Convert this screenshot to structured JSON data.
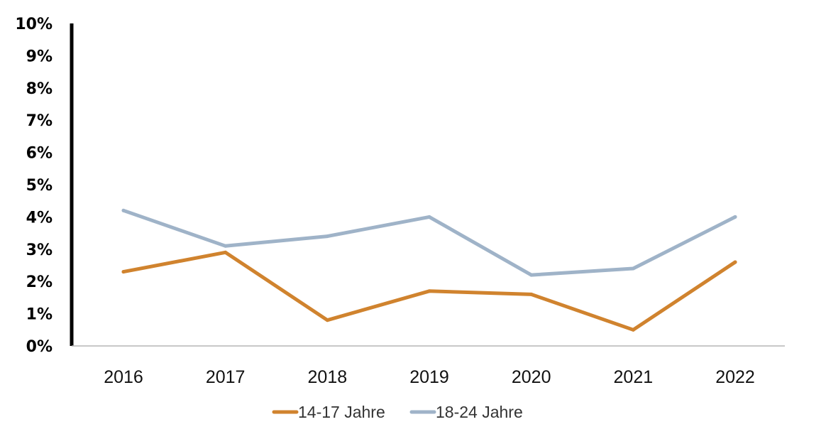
{
  "chart_data": {
    "type": "line",
    "title": "",
    "xlabel": "",
    "ylabel": "",
    "categories": [
      "2016",
      "2017",
      "2018",
      "2019",
      "2020",
      "2021",
      "2022"
    ],
    "ylim": [
      0,
      10
    ],
    "yticks": [
      0,
      1,
      2,
      3,
      4,
      5,
      6,
      7,
      8,
      9,
      10
    ],
    "ytick_labels": [
      "0%",
      "1%",
      "2%",
      "3%",
      "4%",
      "5%",
      "6%",
      "7%",
      "8%",
      "9%",
      "10%"
    ],
    "grid": false,
    "legend_position": "bottom",
    "series": [
      {
        "name": "14-17 Jahre",
        "color": "#d0832e",
        "values": [
          2.3,
          2.9,
          0.8,
          1.7,
          1.6,
          0.5,
          2.6
        ]
      },
      {
        "name": "18-24 Jahre",
        "color": "#9fb3c8",
        "values": [
          4.2,
          3.1,
          3.4,
          4.0,
          2.2,
          2.4,
          4.0
        ]
      }
    ]
  }
}
